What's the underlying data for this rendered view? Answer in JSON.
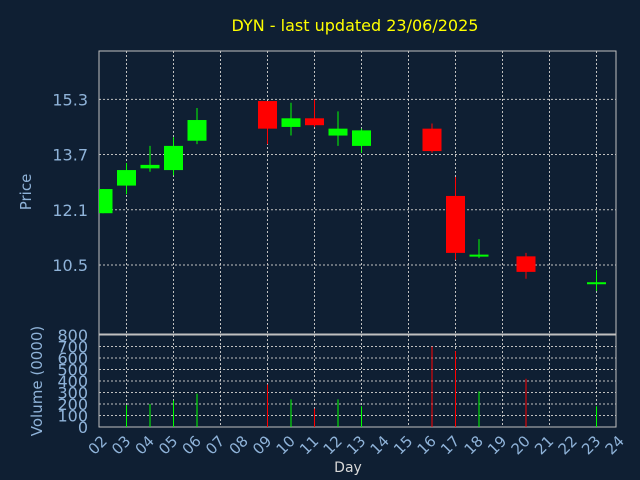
{
  "chart_data": {
    "type": "candlestick",
    "title": "DYN - last updated 23/06/2025",
    "xlabel": "Day",
    "ylabel": "Price",
    "volume_label": "Volume (0000)",
    "x_ticks": [
      "02",
      "03",
      "04",
      "05",
      "06",
      "07",
      "08",
      "09",
      "10",
      "11",
      "12",
      "13",
      "14",
      "15",
      "16",
      "17",
      "18",
      "19",
      "20",
      "21",
      "22",
      "23",
      "24"
    ],
    "price_ticks": [
      "15.3",
      "13.7",
      "12.1",
      "10.5"
    ],
    "price_tick_values": [
      15.3,
      13.7,
      12.1,
      10.5
    ],
    "price_range": [
      8.5,
      16.7
    ],
    "volume_ticks": [
      "800",
      "700",
      "600",
      "500",
      "400",
      "300",
      "200",
      "100",
      "0"
    ],
    "volume_tick_values": [
      800,
      700,
      600,
      500,
      400,
      300,
      200,
      100,
      0
    ],
    "volume_range": [
      0,
      800
    ],
    "grid": true,
    "candles": [
      {
        "day": "02",
        "open": 12.0,
        "high": 12.7,
        "low": 12.0,
        "close": 12.7
      },
      {
        "day": "03",
        "open": 12.8,
        "high": 13.45,
        "low": 12.55,
        "close": 13.25
      },
      {
        "day": "04",
        "open": 13.3,
        "high": 13.95,
        "low": 13.2,
        "close": 13.4
      },
      {
        "day": "05",
        "open": 13.25,
        "high": 14.2,
        "low": 13.1,
        "close": 13.95
      },
      {
        "day": "06",
        "open": 14.1,
        "high": 15.05,
        "low": 14.0,
        "close": 14.7
      },
      {
        "day": "09",
        "open": 15.25,
        "high": 15.25,
        "low": 14.0,
        "close": 14.45
      },
      {
        "day": "10",
        "open": 14.5,
        "high": 15.2,
        "low": 14.25,
        "close": 14.75
      },
      {
        "day": "11",
        "open": 14.75,
        "high": 15.3,
        "low": 14.5,
        "close": 14.55
      },
      {
        "day": "12",
        "open": 14.25,
        "high": 14.95,
        "low": 13.95,
        "close": 14.45
      },
      {
        "day": "13",
        "open": 13.95,
        "high": 14.45,
        "low": 13.75,
        "close": 14.4
      },
      {
        "day": "16",
        "open": 14.45,
        "high": 14.6,
        "low": 13.75,
        "close": 13.8
      },
      {
        "day": "17",
        "open": 12.5,
        "high": 13.05,
        "low": 10.65,
        "close": 10.85
      },
      {
        "day": "18",
        "open": 10.8,
        "high": 11.25,
        "low": 10.7,
        "close": 10.8
      },
      {
        "day": "20",
        "open": 10.75,
        "high": 10.85,
        "low": 10.1,
        "close": 10.3
      },
      {
        "day": "23",
        "open": 10.0,
        "high": 10.35,
        "low": 9.75,
        "close": 10.0
      }
    ],
    "volume": [
      {
        "day": "02",
        "value": 0
      },
      {
        "day": "03",
        "value": 190
      },
      {
        "day": "04",
        "value": 200
      },
      {
        "day": "05",
        "value": 230
      },
      {
        "day": "06",
        "value": 290
      },
      {
        "day": "09",
        "value": 370
      },
      {
        "day": "10",
        "value": 240
      },
      {
        "day": "11",
        "value": 160
      },
      {
        "day": "12",
        "value": 240
      },
      {
        "day": "13",
        "value": 180
      },
      {
        "day": "16",
        "value": 700
      },
      {
        "day": "17",
        "value": 660
      },
      {
        "day": "18",
        "value": 310
      },
      {
        "day": "20",
        "value": 420
      },
      {
        "day": "23",
        "value": 180
      }
    ]
  },
  "colors": {
    "background": "#0f1f33",
    "axis_text": "#8fb3d9",
    "title": "#ffff00",
    "frame": "#c0c0c0",
    "grid": "#c0c0c0",
    "up": "#00ff00",
    "down": "#ff0000",
    "label": "#d8d8d8"
  }
}
